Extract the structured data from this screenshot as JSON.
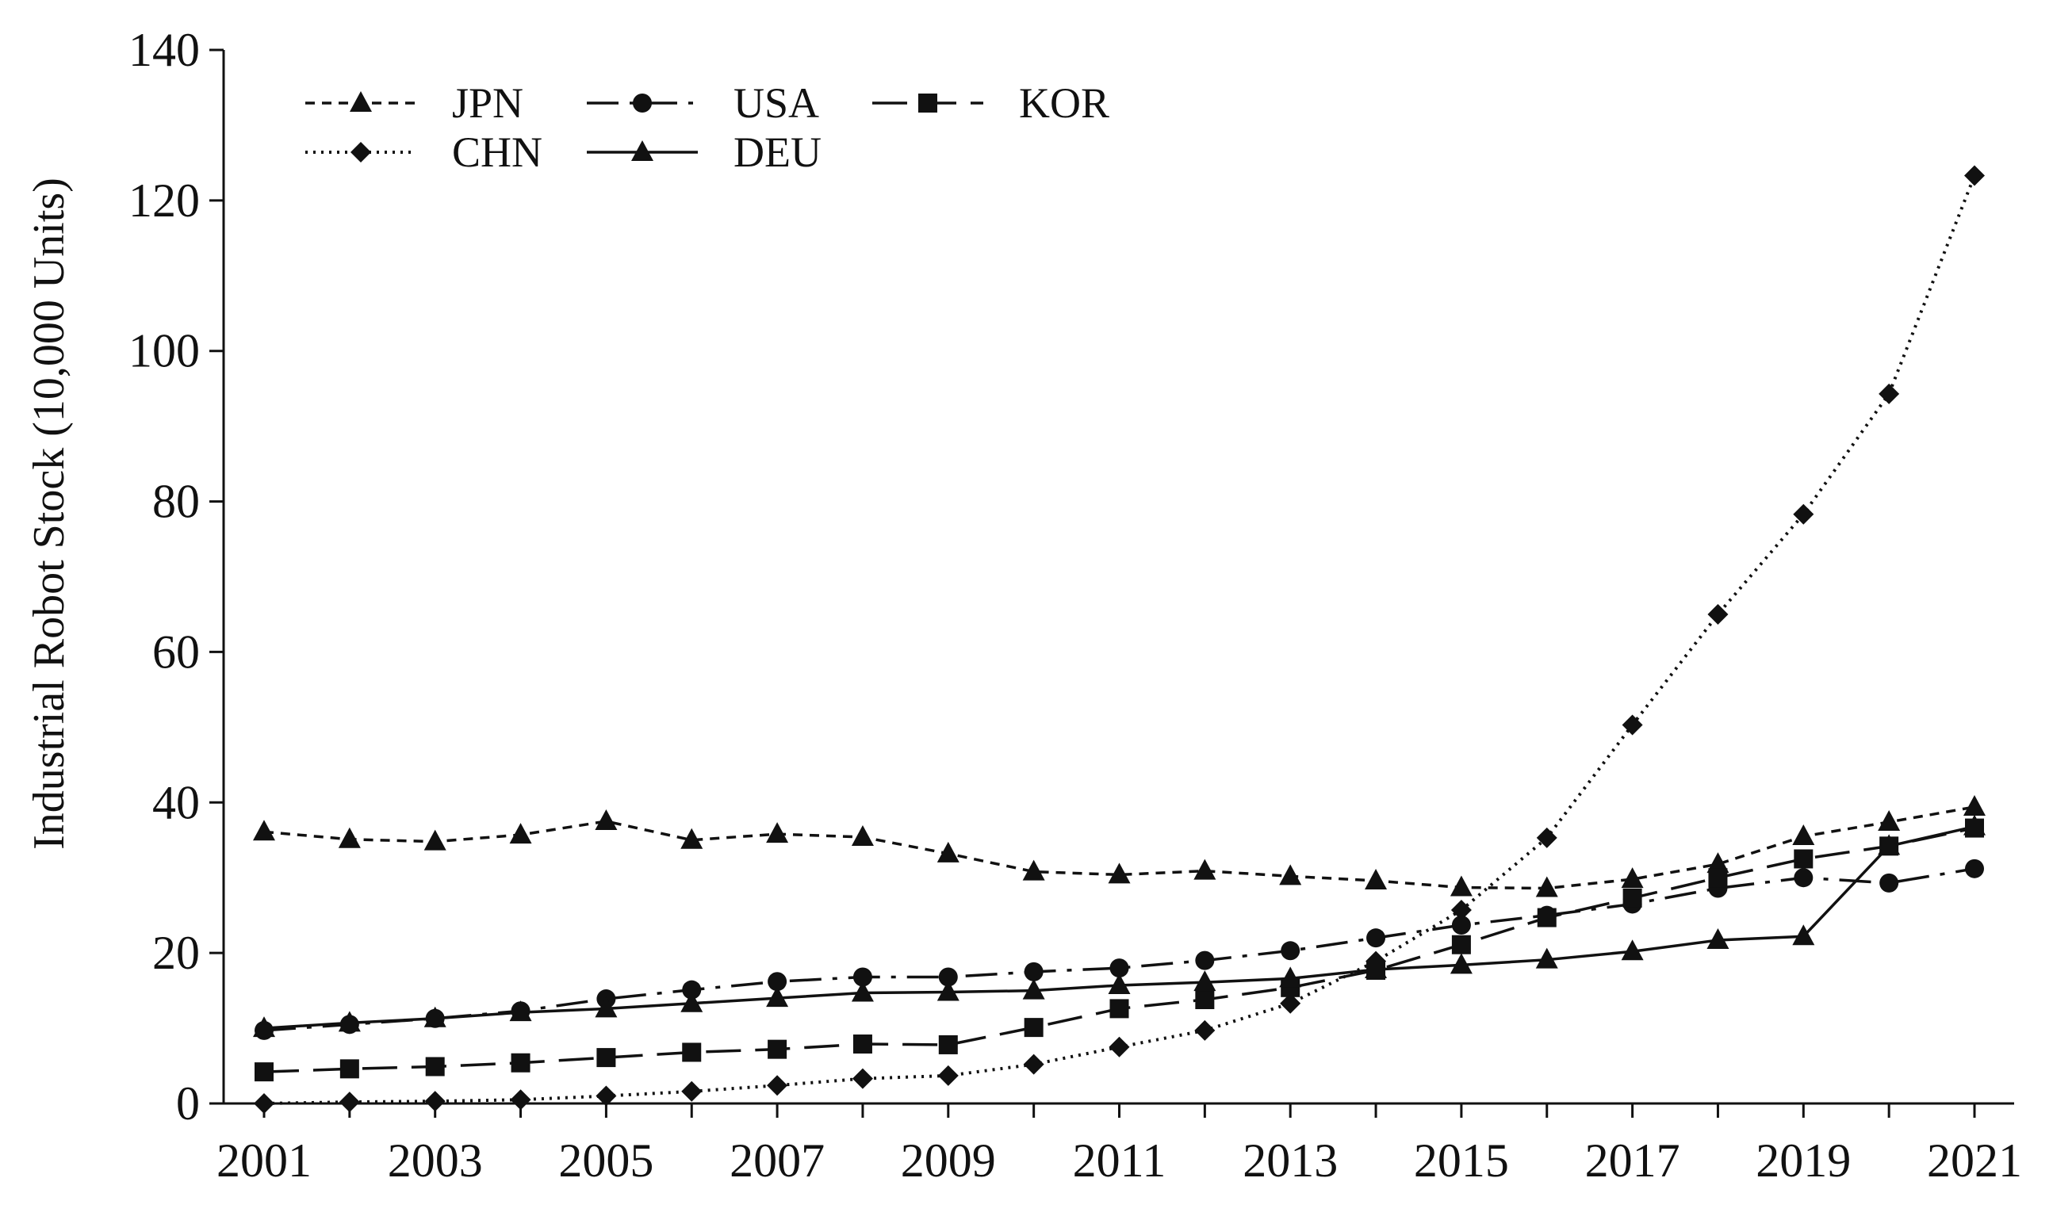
{
  "chart_data": {
    "type": "line",
    "title": "",
    "xlabel": "",
    "ylabel": "Industrial Robot Stock (10,000 Units)",
    "ylim": [
      0,
      140
    ],
    "yticks": [
      0,
      20,
      40,
      60,
      80,
      100,
      120,
      140
    ],
    "xlim": [
      2001,
      2021
    ],
    "xticks": [
      2001,
      2003,
      2005,
      2007,
      2009,
      2011,
      2013,
      2015,
      2017,
      2019,
      2021
    ],
    "grid": false,
    "legend_position": "top-left",
    "x": [
      2001,
      2002,
      2003,
      2004,
      2005,
      2006,
      2007,
      2008,
      2009,
      2010,
      2011,
      2012,
      2013,
      2014,
      2015,
      2016,
      2017,
      2018,
      2019,
      2020,
      2021
    ],
    "series": [
      {
        "name": "JPN",
        "line_style": "short-dash",
        "marker": "triangle",
        "color": "#111111",
        "values": [
          36.1,
          35.1,
          34.8,
          35.7,
          37.5,
          35.0,
          35.8,
          35.4,
          33.2,
          30.8,
          30.4,
          30.9,
          30.2,
          29.6,
          28.7,
          28.6,
          29.8,
          31.8,
          35.5,
          37.4,
          39.4
        ]
      },
      {
        "name": "USA",
        "line_style": "dash-dot",
        "marker": "circle",
        "color": "#111111",
        "values": [
          9.7,
          10.5,
          11.3,
          12.3,
          13.9,
          15.1,
          16.2,
          16.8,
          16.8,
          17.5,
          18.0,
          19.0,
          20.3,
          22.0,
          23.7,
          25.0,
          26.5,
          28.6,
          30.0,
          29.3,
          31.2
        ]
      },
      {
        "name": "KOR",
        "line_style": "long-dash",
        "marker": "square",
        "color": "#111111",
        "values": [
          4.2,
          4.6,
          4.9,
          5.4,
          6.1,
          6.8,
          7.2,
          7.9,
          7.8,
          10.1,
          12.6,
          13.8,
          15.4,
          17.7,
          21.1,
          24.7,
          27.3,
          30.0,
          32.5,
          34.2,
          36.6
        ]
      },
      {
        "name": "CHN",
        "line_style": "dotted",
        "marker": "diamond",
        "color": "#111111",
        "values": [
          0.0,
          0.2,
          0.3,
          0.5,
          1.0,
          1.6,
          2.4,
          3.3,
          3.7,
          5.2,
          7.5,
          9.7,
          13.3,
          18.9,
          25.7,
          35.3,
          50.3,
          65.0,
          78.3,
          94.3,
          123.3
        ]
      },
      {
        "name": "DEU",
        "line_style": "solid",
        "marker": "triangle",
        "color": "#111111",
        "values": [
          10.0,
          10.7,
          11.3,
          12.1,
          12.6,
          13.3,
          14.0,
          14.7,
          14.8,
          15.0,
          15.7,
          16.1,
          16.6,
          17.8,
          18.4,
          19.1,
          20.2,
          21.7,
          22.2,
          34.2,
          36.8
        ]
      }
    ]
  }
}
